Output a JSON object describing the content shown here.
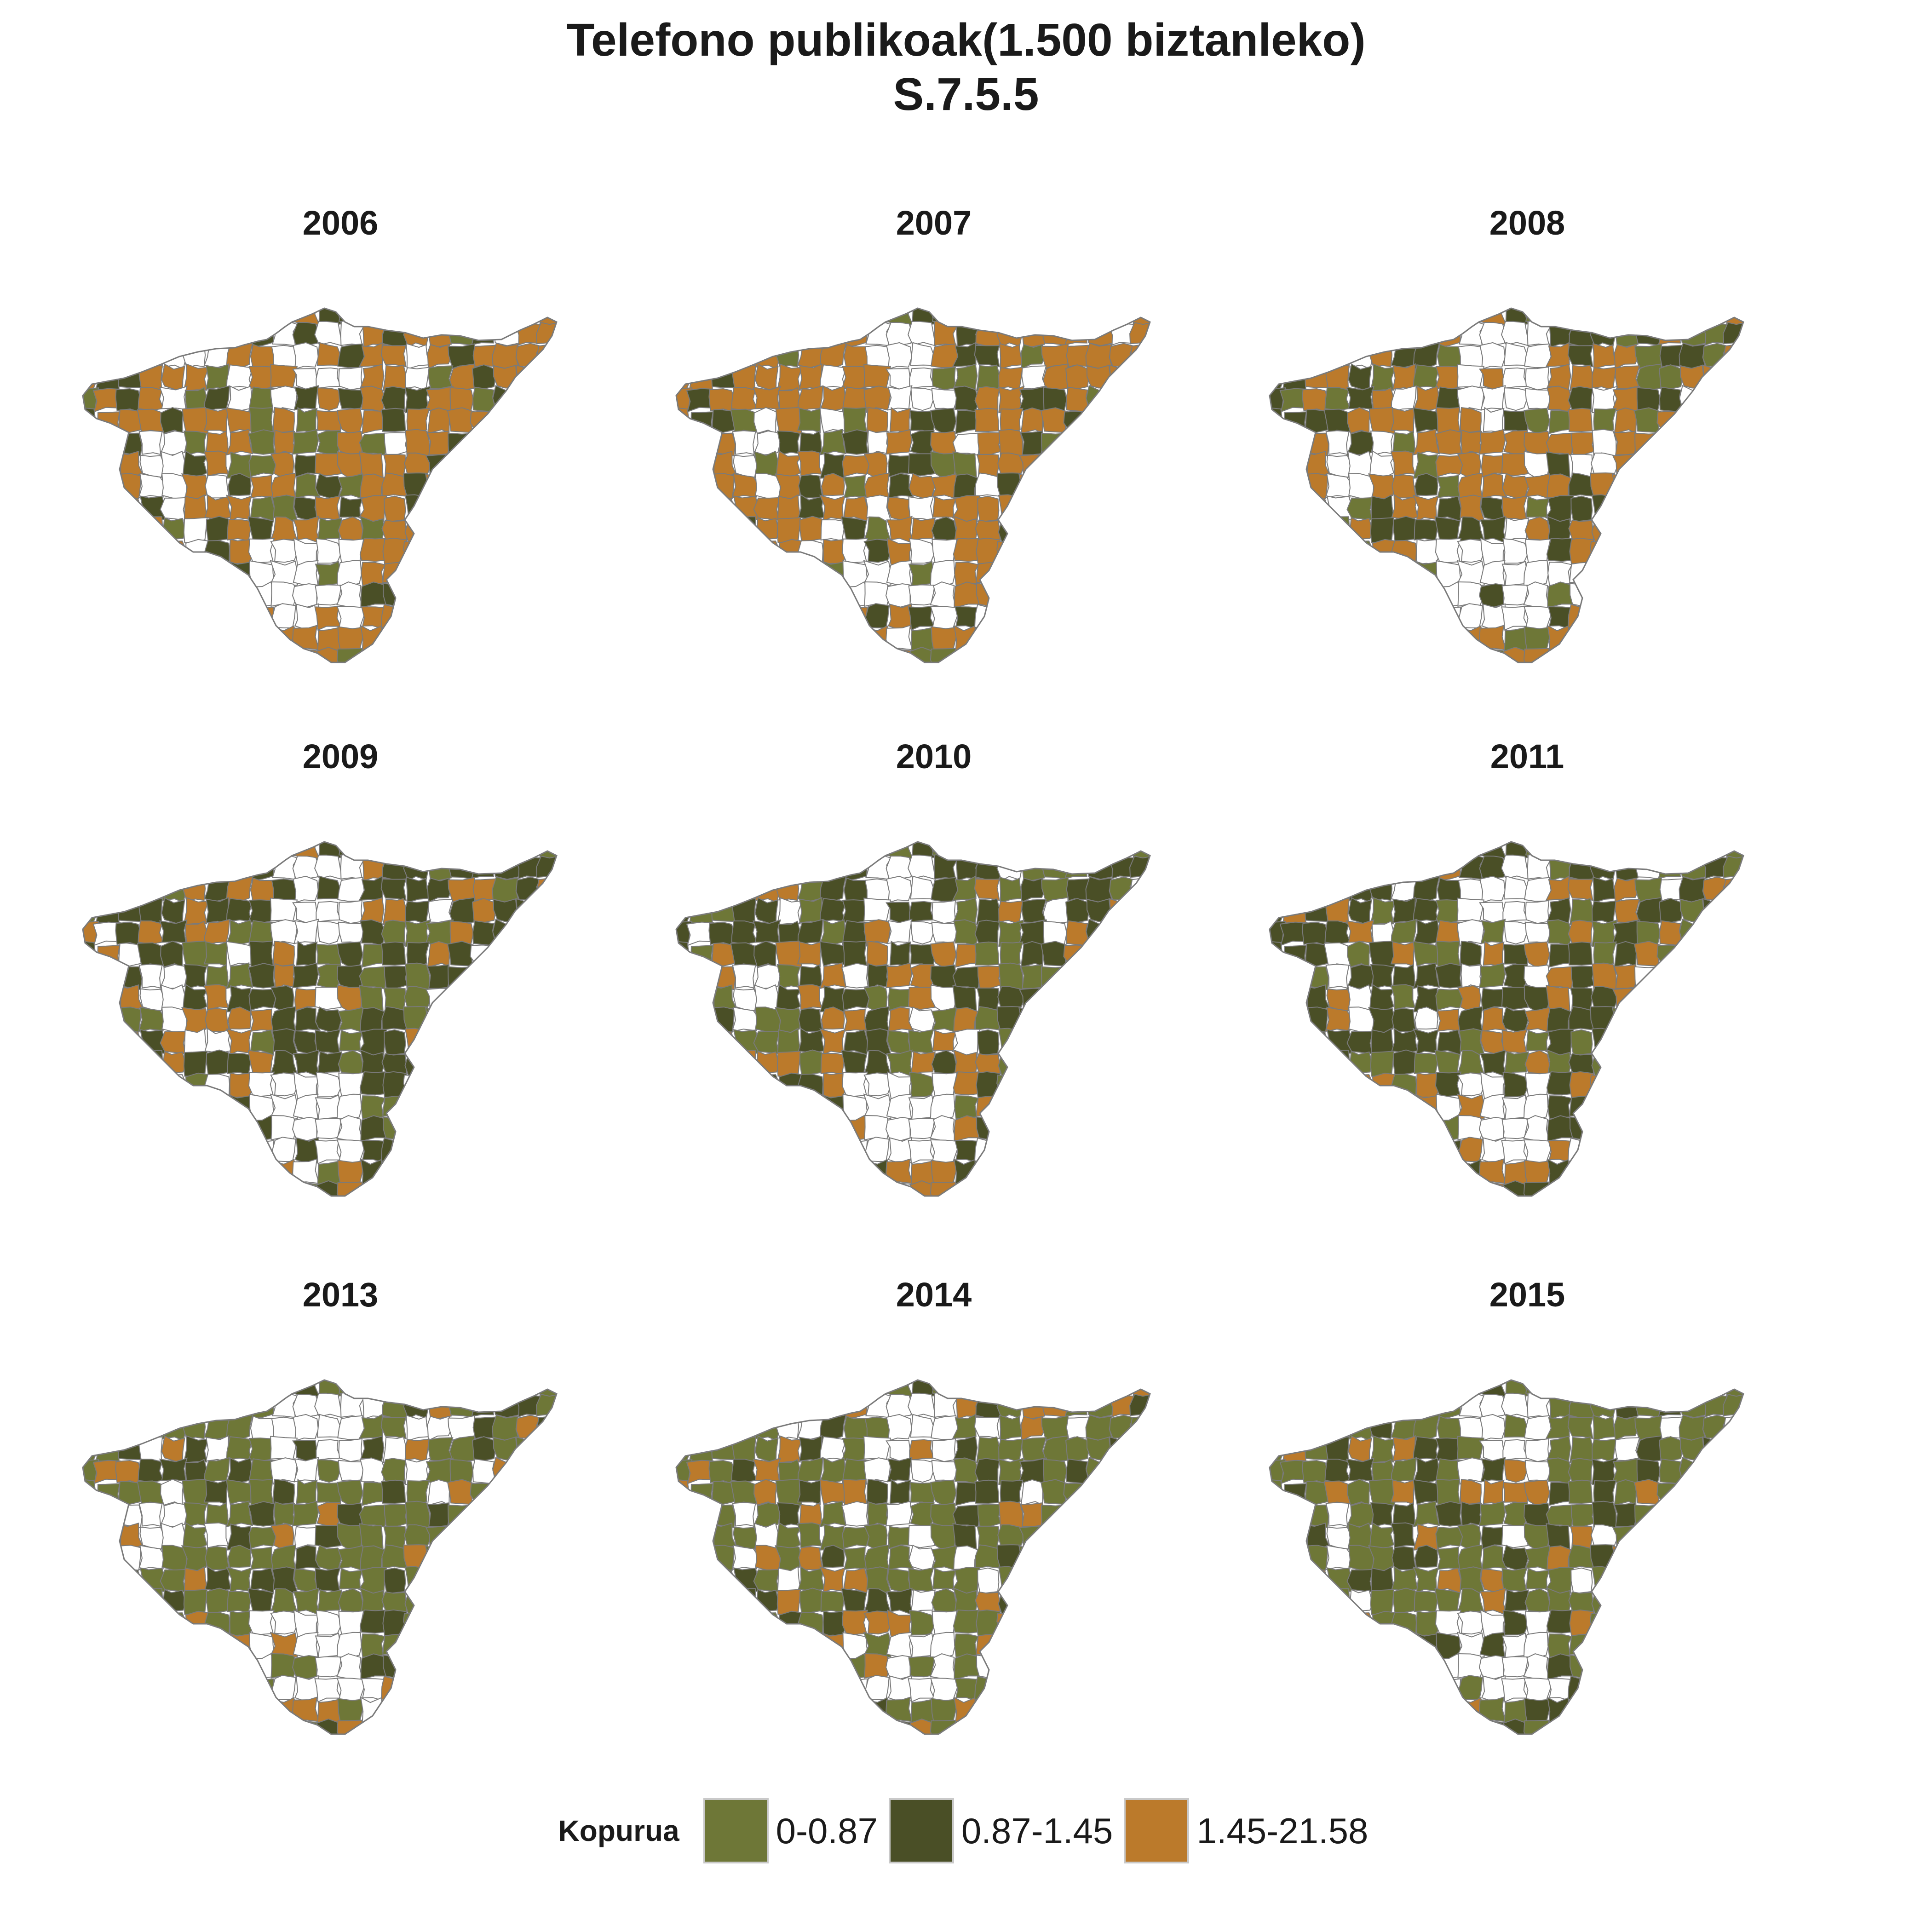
{
  "title_line1": "Telefono publikoak(1.500 biztanleko)",
  "title_line2": "S.7.5.5",
  "legend": {
    "title": "Kopurua",
    "classes": [
      {
        "label": "0-0.87",
        "color": "#6e7737"
      },
      {
        "label": "0.87-1.45",
        "color": "#4a4f26"
      },
      {
        "label": "1.45-21.58",
        "color": "#bb7a2b"
      }
    ],
    "no_data_color": "#ffffff",
    "border_color": "#7a7a7a"
  },
  "chart_data": {
    "type": "choropleth-small-multiples",
    "region": "Gipuzkoa municipalities",
    "value_name": "Kopurua",
    "panels": [
      {
        "year": "2006",
        "dominant_class": "1.45-21.58"
      },
      {
        "year": "2007",
        "dominant_class": "1.45-21.58"
      },
      {
        "year": "2008",
        "dominant_class": "1.45-21.58"
      },
      {
        "year": "2009",
        "dominant_class": "0.87-1.45"
      },
      {
        "year": "2010",
        "dominant_class": "0.87-1.45"
      },
      {
        "year": "2011",
        "dominant_class": "0.87-1.45"
      },
      {
        "year": "2013",
        "dominant_class": "0-0.87"
      },
      {
        "year": "2014",
        "dominant_class": "0-0.87"
      },
      {
        "year": "2015",
        "dominant_class": "0-0.87"
      }
    ]
  }
}
